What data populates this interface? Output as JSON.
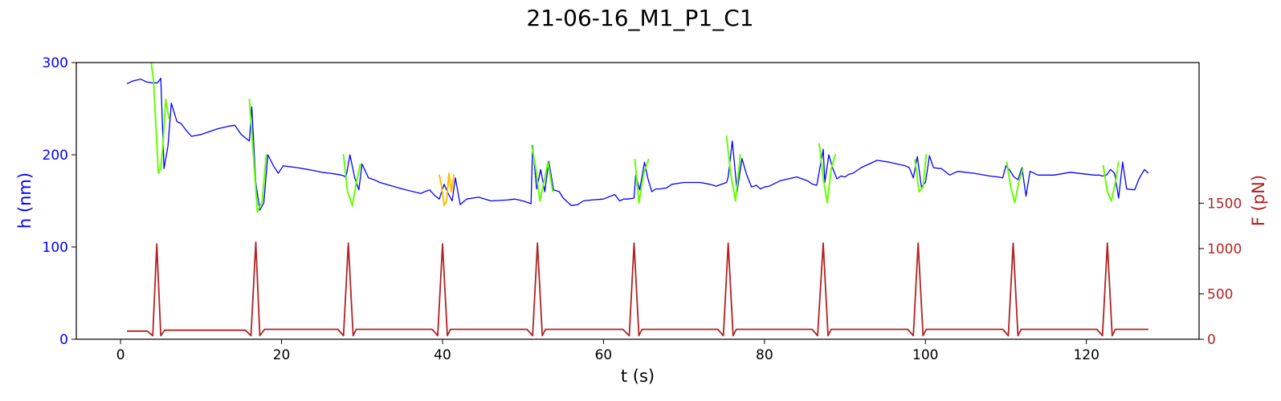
{
  "chart_data": {
    "type": "line",
    "title": "21-06-16_M1_P1_C1",
    "xlabel": "t (s)",
    "ylabel_left": "h (nm)",
    "ylabel_right": "F (pN)",
    "xlim": [
      -5.5,
      134
    ],
    "ylim_left": [
      0,
      300
    ],
    "ylim_right": [
      0,
      3050
    ],
    "x_ticks": [
      0,
      20,
      40,
      60,
      80,
      100,
      120
    ],
    "y_ticks_left": [
      0,
      100,
      200,
      300
    ],
    "y_ticks_right": [
      0,
      500,
      1000,
      1500
    ],
    "grid": false,
    "colors": {
      "height_line": "#0000ff",
      "segment_green": "#66ff00",
      "segment_orange": "#ffc000",
      "force_line": "#b22222",
      "left_axis_text": "#0000ff",
      "right_axis_text": "#b22222"
    },
    "series": [
      {
        "axis": "left",
        "x": [
          0.8,
          1.5,
          2.5,
          3.2,
          4.0,
          4.6,
          5.0,
          5.4,
          5.9,
          6.3,
          7.0,
          7.5,
          8.2,
          8.8,
          10,
          12,
          13.5,
          14.2,
          15.0,
          16.0,
          16.3,
          16.8,
          17.3,
          17.8,
          18.3,
          19.0,
          19.6,
          20.2,
          22,
          24,
          25,
          26,
          26.8,
          27.4,
          27.8,
          28.0,
          28.5,
          29.1,
          29.6,
          30.0,
          30.8,
          31.5,
          32.2,
          33.0,
          35,
          37.3,
          37.8,
          38.4,
          39.0,
          39.6,
          40.2,
          40.7,
          41.2,
          41.6,
          42.2,
          43.0,
          44.5,
          46,
          48,
          49,
          50,
          51.0,
          51.2,
          51.7,
          52.2,
          52.7,
          53.2,
          53.8,
          54.5,
          55,
          56,
          56.8,
          57.5,
          58.5,
          60,
          61.4,
          62.0,
          62.5,
          63,
          63.8,
          64.0,
          64.5,
          65.1,
          65.5,
          66.0,
          66.5,
          67,
          67.8,
          68.5,
          70,
          72.0,
          73.2,
          74.0,
          75.3,
          75.5,
          76.0,
          76.6,
          77.2,
          77.8,
          78.4,
          79.0,
          79.5,
          80.0,
          80.6,
          82,
          84.0,
          85.3,
          86.0,
          86.5,
          87.3,
          87.5,
          88.0,
          88.5,
          89.0,
          89.5,
          90.0,
          90.5,
          91.0,
          92.0,
          94.0,
          95.5,
          96.5,
          97.5,
          98.0,
          98.5,
          99.0,
          99.5,
          100.0,
          100.5,
          101.0,
          102.0,
          103.0,
          104.0,
          106.0,
          108.0,
          109.0,
          109.6,
          110.0,
          110.5,
          111.0,
          111.5,
          112.0,
          112.5,
          113.0,
          114.0,
          116.0,
          118.0,
          120.0,
          121.0,
          121.6,
          122.0,
          122.5,
          123.0,
          123.5,
          124.0,
          124.5,
          125.0,
          126.0,
          126.6,
          127.2,
          127.7
        ],
        "values": [
          277,
          280,
          282,
          279,
          278,
          278,
          283,
          185,
          210,
          256,
          236,
          234,
          226,
          220,
          222,
          228,
          231,
          232,
          222,
          215,
          252,
          170,
          140,
          148,
          200,
          188,
          180,
          188,
          186,
          183,
          181,
          180,
          179,
          178,
          177,
          175,
          200,
          175,
          162,
          190,
          175,
          173,
          170,
          168,
          163,
          158,
          160,
          162,
          156,
          152,
          168,
          158,
          150,
          175,
          146,
          152,
          154,
          150,
          151,
          152,
          150,
          147,
          210,
          163,
          184,
          160,
          193,
          162,
          160,
          153,
          145,
          146,
          150,
          151,
          152,
          157,
          150,
          152,
          152,
          153,
          178,
          162,
          192,
          175,
          160,
          163,
          163,
          164,
          168,
          170,
          170,
          168,
          166,
          170,
          176,
          215,
          160,
          196,
          178,
          165,
          167,
          163,
          165,
          166,
          172,
          176,
          172,
          168,
          167,
          206,
          170,
          200,
          185,
          174,
          177,
          176,
          179,
          180,
          186,
          194,
          192,
          190,
          188,
          186,
          175,
          198,
          165,
          170,
          199,
          186,
          185,
          178,
          182,
          180,
          177,
          176,
          175,
          188,
          183,
          176,
          173,
          186,
          155,
          182,
          178,
          178,
          181,
          179,
          178,
          178,
          177,
          178,
          184,
          180,
          153,
          192,
          163,
          162,
          175,
          184,
          180
        ]
      },
      {
        "axis": "left",
        "label_segment": "green",
        "x": [
          3.8,
          4.1,
          4.4,
          4.7,
          5.0,
          5.3,
          5.6,
          6.0,
          16.0,
          16.5,
          17.0,
          17.6,
          18.1,
          27.7,
          28.2,
          28.8,
          29.3,
          29.8,
          51.1,
          51.6,
          52.1,
          52.6,
          53.1,
          53.7,
          63.9,
          64.4,
          65.0,
          65.6,
          75.3,
          75.8,
          76.4,
          77.0,
          86.8,
          87.3,
          87.8,
          88.3,
          88.8,
          98.7,
          99.2,
          99.7,
          100.1,
          110.1,
          110.6,
          111.1,
          111.6,
          112.1,
          122.1,
          122.6,
          123.1,
          123.6,
          124.0
        ],
        "values": [
          300,
          280,
          230,
          180,
          185,
          215,
          260,
          240,
          260,
          200,
          138,
          150,
          200,
          200,
          160,
          145,
          170,
          190,
          210,
          185,
          150,
          170,
          192,
          160,
          195,
          148,
          180,
          195,
          220,
          180,
          150,
          200,
          212,
          175,
          148,
          185,
          200,
          195,
          160,
          165,
          200,
          192,
          165,
          148,
          170,
          185,
          188,
          160,
          150,
          170,
          192
        ]
      },
      {
        "axis": "left",
        "label_segment": "orange",
        "x": [
          39.6,
          39.9,
          40.2,
          40.5,
          40.8,
          41.1,
          41.4
        ],
        "values": [
          178,
          165,
          145,
          150,
          180,
          160,
          178
        ]
      },
      {
        "axis": "right",
        "x": [
          0.8,
          3.3,
          4.0,
          4.5,
          5.0,
          5.5,
          6.0,
          6.5,
          15.5,
          16.2,
          16.8,
          17.3,
          17.9,
          18.3,
          27.0,
          27.7,
          28.3,
          28.9,
          29.3,
          38.7,
          39.4,
          40.0,
          40.6,
          41.0,
          50.5,
          51.2,
          51.8,
          52.4,
          52.8,
          62.4,
          63.2,
          63.8,
          64.4,
          64.8,
          74.2,
          74.9,
          75.5,
          76.1,
          76.5,
          85.9,
          86.6,
          87.3,
          87.9,
          88.3,
          97.8,
          98.5,
          99.1,
          99.7,
          100.1,
          109.6,
          110.3,
          110.9,
          111.5,
          111.9,
          121.3,
          122.0,
          122.6,
          123.2,
          123.6,
          127.7
        ],
        "values": [
          90,
          90,
          40,
          1050,
          40,
          100,
          100,
          100,
          100,
          40,
          1070,
          40,
          110,
          110,
          110,
          40,
          1060,
          40,
          110,
          110,
          40,
          1050,
          40,
          110,
          110,
          40,
          1060,
          40,
          110,
          110,
          40,
          1060,
          40,
          110,
          110,
          40,
          1060,
          40,
          110,
          110,
          40,
          1060,
          40,
          110,
          110,
          40,
          1060,
          40,
          110,
          110,
          40,
          1060,
          40,
          110,
          110,
          40,
          1060,
          40,
          110,
          110
        ]
      }
    ]
  }
}
